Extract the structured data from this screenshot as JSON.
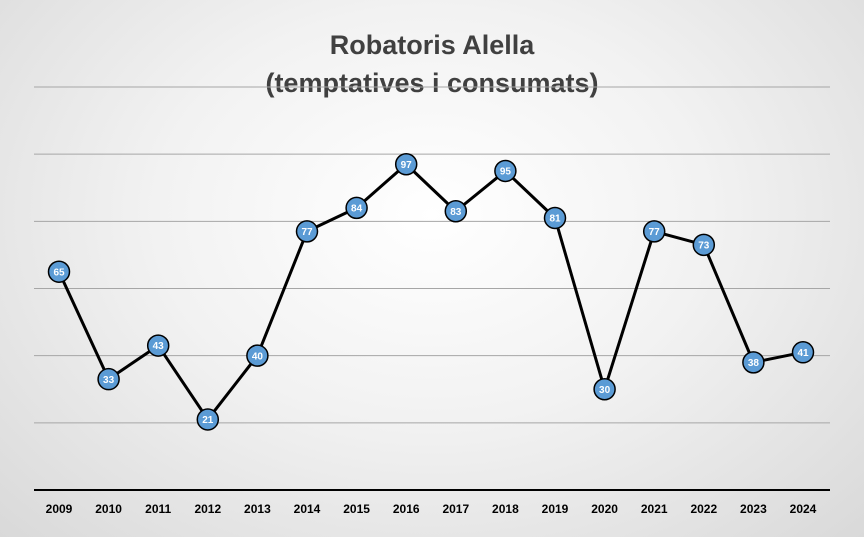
{
  "chart_data": {
    "type": "line",
    "title": "Robatoris Alella",
    "subtitle": "(temptatives i consumats)",
    "xlabel": "",
    "ylabel": "",
    "categories": [
      "2009",
      "2010",
      "2011",
      "2012",
      "2013",
      "2014",
      "2015",
      "2016",
      "2017",
      "2018",
      "2019",
      "2020",
      "2021",
      "2022",
      "2023",
      "2024"
    ],
    "values": [
      65,
      33,
      43,
      21,
      40,
      77,
      84,
      97,
      83,
      95,
      81,
      30,
      77,
      73,
      38,
      41
    ],
    "ylim": [
      0,
      120
    ],
    "grid": true,
    "legend": "none",
    "colors": {
      "line": "#000000",
      "marker_fill": "#5b9bd5",
      "marker_stroke": "#000000",
      "label_text": "#ffffff"
    }
  }
}
